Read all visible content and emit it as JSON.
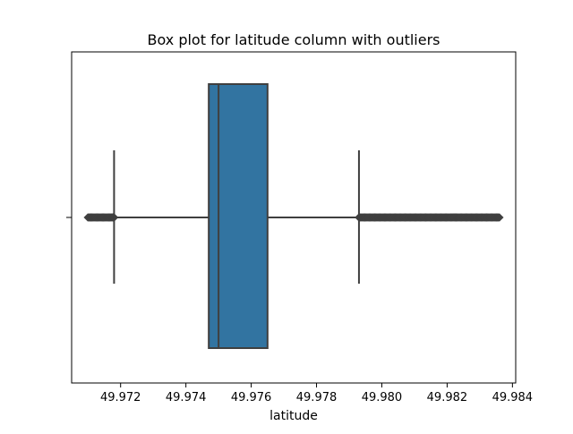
{
  "chart_data": {
    "type": "box",
    "title": "Box plot for latitude column with outliers",
    "xlabel": "latitude",
    "ylabel": "",
    "orientation": "horizontal",
    "xlim": [
      49.9705,
      49.9841
    ],
    "xticks": [
      49.972,
      49.974,
      49.976,
      49.978,
      49.98,
      49.982,
      49.984
    ],
    "xtick_labels": [
      "49.972",
      "49.974",
      "49.976",
      "49.978",
      "49.980",
      "49.982",
      "49.984"
    ],
    "box": {
      "whisker_low": 49.9718,
      "q1": 49.9747,
      "median": 49.975,
      "q3": 49.9765,
      "whisker_high": 49.9793
    },
    "outliers_low_range": [
      49.971,
      49.9718
    ],
    "outliers_high_range": [
      49.9793,
      49.9836
    ],
    "colors": {
      "box_fill": "#3274a1",
      "line": "#3f3f3f",
      "outlier": "#3f3f3f"
    },
    "grid": false
  }
}
